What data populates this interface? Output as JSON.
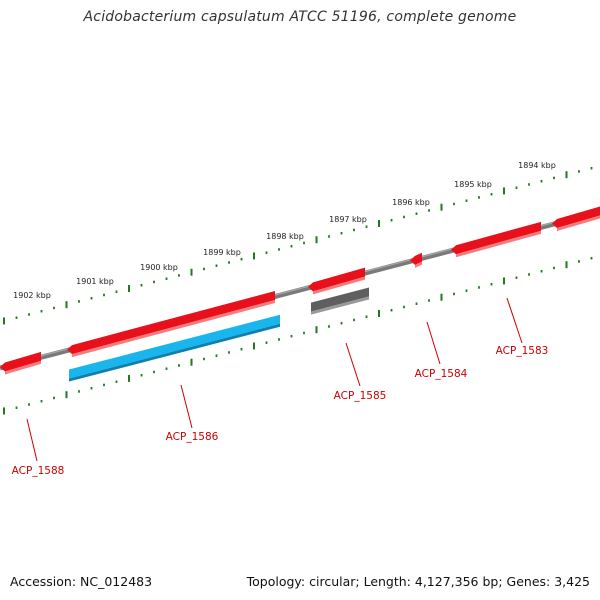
{
  "title": "Acidobacterium capsulatum ATCC 51196, complete genome",
  "footer": {
    "accession": "Accession: NC_012483",
    "summary": "Topology: circular; Length: 4,127,356 bp; Genes: 3,425"
  },
  "colors": {
    "backbone": "#7a7a7a",
    "ticks": "#1f7a1f",
    "gene_red": "#e8101a",
    "gene_blue": "#19b6ee",
    "gene_gray": "#5f5f5f",
    "label": "#cc0000"
  },
  "ruler": {
    "labels": [
      "1894 kbp",
      "1895 kbp",
      "1896 kbp",
      "1897 kbp",
      "1898 kbp",
      "1899 kbp",
      "1900 kbp",
      "1901 kbp",
      "1902 kbp"
    ]
  },
  "genes": [
    {
      "label": "ACP_1583",
      "strand": "-",
      "color": "red"
    },
    {
      "label": "ACP_1584",
      "strand": "-",
      "color": "red"
    },
    {
      "label": "ACP_1585",
      "strand": "-",
      "color": "red"
    },
    {
      "label": "ACP_1585",
      "strand": "+",
      "color": "gray"
    },
    {
      "label": "ACP_1586",
      "strand": "-",
      "color": "red"
    },
    {
      "label": "ACP_1586",
      "strand": "+",
      "color": "blue"
    },
    {
      "label": "ACP_1588",
      "strand": "-",
      "color": "red"
    },
    {
      "label": "",
      "strand": "-",
      "color": "red"
    }
  ],
  "gene_labels": [
    "ACP_1583",
    "ACP_1584",
    "ACP_1585",
    "ACP_1586",
    "ACP_1588"
  ]
}
